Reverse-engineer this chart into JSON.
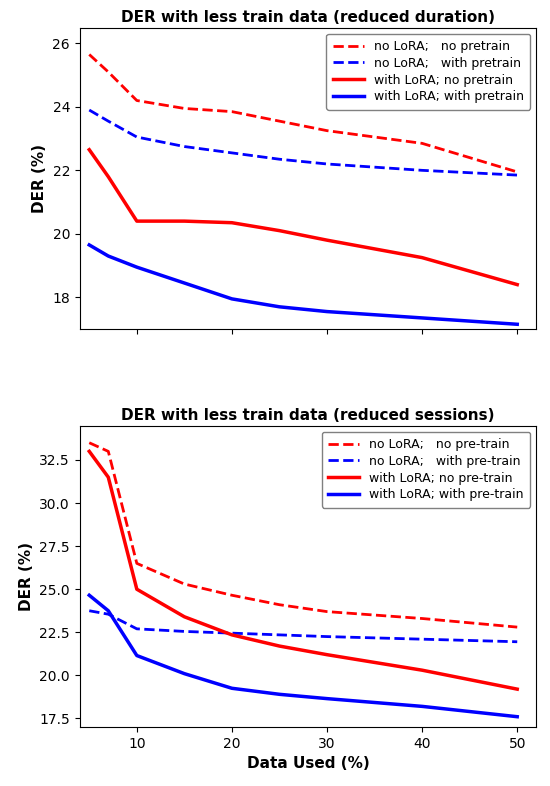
{
  "top": {
    "title": "DER with less train data (reduced duration)",
    "ylabel": "DER (%)",
    "x": [
      5,
      7,
      10,
      15,
      20,
      25,
      30,
      40,
      50
    ],
    "ylim": [
      17.0,
      26.5
    ],
    "yticks": [
      18,
      20,
      22,
      24,
      26
    ],
    "xticks": [
      10,
      20,
      30,
      40,
      50
    ],
    "xticklabels": [
      "",
      "",
      "",
      "",
      ""
    ],
    "series": [
      {
        "label": "no LoRA;   no pretrain",
        "color": "#ff0000",
        "linestyle": "dashed",
        "linewidth": 2.0,
        "y": [
          25.65,
          25.1,
          24.2,
          23.95,
          23.85,
          23.55,
          23.25,
          22.85,
          21.95
        ]
      },
      {
        "label": "no LoRA;   with pretrain",
        "color": "#0000ff",
        "linestyle": "dashed",
        "linewidth": 2.0,
        "y": [
          23.9,
          23.55,
          23.05,
          22.75,
          22.55,
          22.35,
          22.2,
          22.0,
          21.85
        ]
      },
      {
        "label": "with LoRA; no pretrain",
        "color": "#ff0000",
        "linestyle": "solid",
        "linewidth": 2.5,
        "y": [
          22.65,
          21.8,
          20.4,
          20.4,
          20.35,
          20.1,
          19.8,
          19.25,
          18.4
        ]
      },
      {
        "label": "with LoRA; with pretrain",
        "color": "#0000ff",
        "linestyle": "solid",
        "linewidth": 2.5,
        "y": [
          19.65,
          19.3,
          18.95,
          18.45,
          17.95,
          17.7,
          17.55,
          17.35,
          17.15
        ]
      }
    ]
  },
  "bottom": {
    "title": "DER with less train data (reduced sessions)",
    "ylabel": "DER (%)",
    "xlabel": "Data Used (%)",
    "x": [
      5,
      7,
      10,
      15,
      20,
      25,
      30,
      40,
      50
    ],
    "ylim": [
      17.0,
      34.5
    ],
    "yticks": [
      17.5,
      20.0,
      22.5,
      25.0,
      27.5,
      30.0,
      32.5
    ],
    "xticks": [
      10,
      20,
      30,
      40,
      50
    ],
    "series": [
      {
        "label": "no LoRA;   no pre-train",
        "color": "#ff0000",
        "linestyle": "dashed",
        "linewidth": 2.0,
        "y": [
          33.5,
          33.0,
          26.5,
          25.3,
          24.65,
          24.1,
          23.7,
          23.3,
          22.8
        ]
      },
      {
        "label": "no LoRA;   with pre-train",
        "color": "#0000ff",
        "linestyle": "dashed",
        "linewidth": 2.0,
        "y": [
          23.75,
          23.55,
          22.7,
          22.55,
          22.45,
          22.35,
          22.25,
          22.1,
          21.95
        ]
      },
      {
        "label": "with LoRA; no pre-train",
        "color": "#ff0000",
        "linestyle": "solid",
        "linewidth": 2.5,
        "y": [
          33.0,
          31.5,
          25.0,
          23.4,
          22.35,
          21.7,
          21.2,
          20.3,
          19.2
        ]
      },
      {
        "label": "with LoRA; with pre-train",
        "color": "#0000ff",
        "linestyle": "solid",
        "linewidth": 2.5,
        "y": [
          24.65,
          23.75,
          21.15,
          20.1,
          19.25,
          18.9,
          18.65,
          18.2,
          17.6
        ]
      }
    ]
  }
}
